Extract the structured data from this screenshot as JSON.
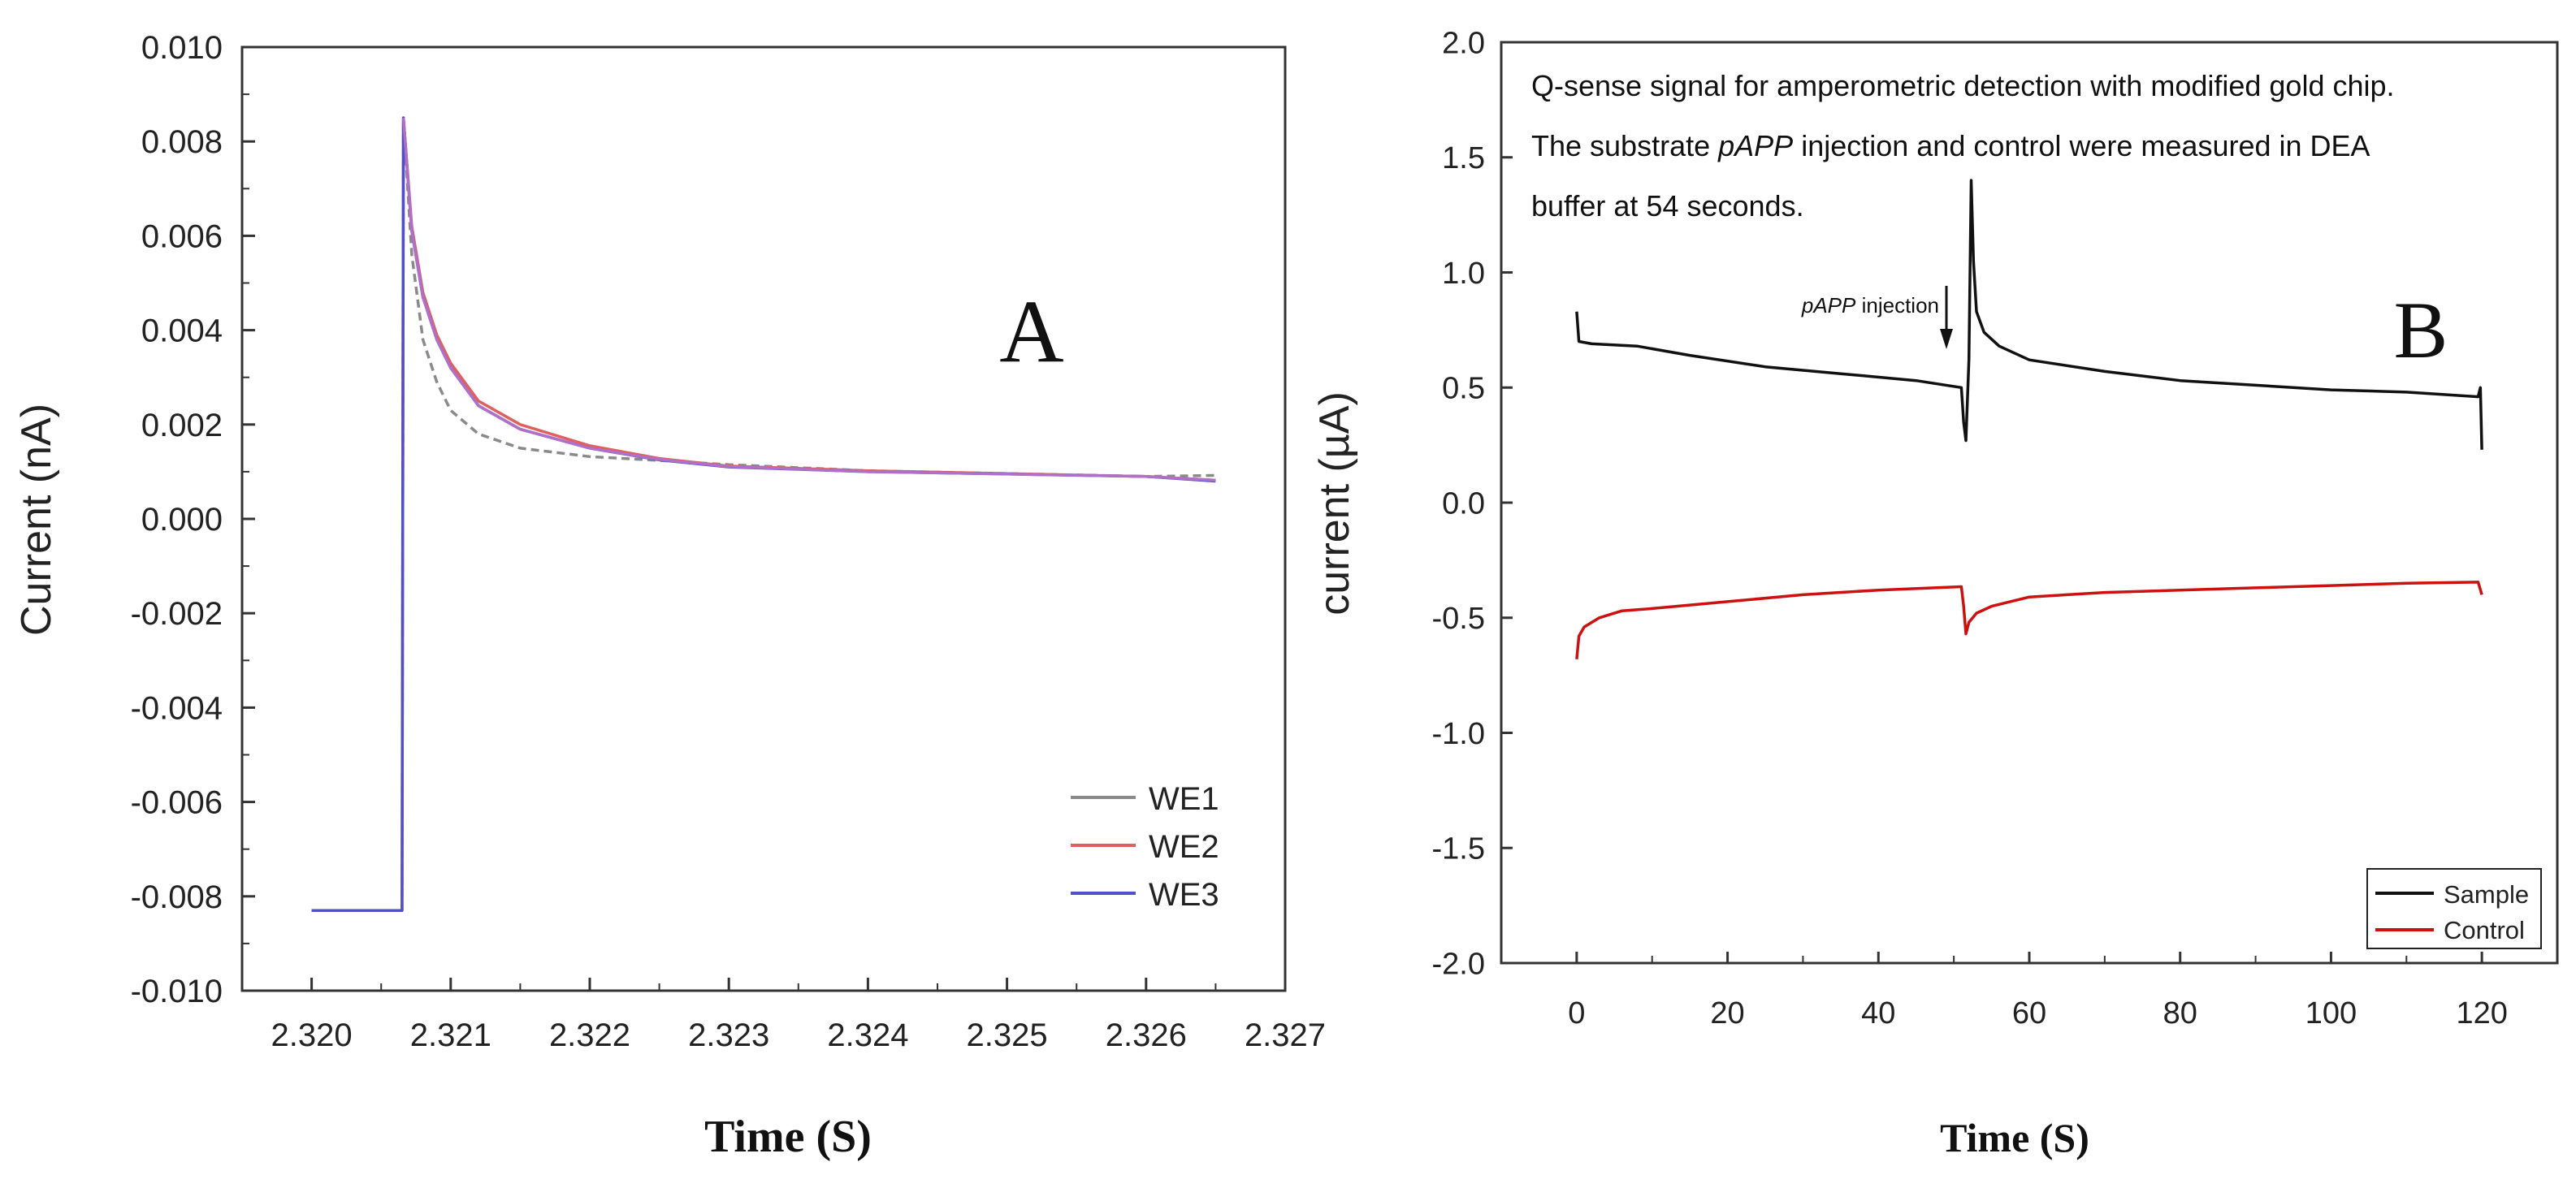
{
  "chart_data": [
    {
      "id": "A",
      "type": "line",
      "panel_label": "A",
      "xlabel": "Time (S)",
      "ylabel": "Current (nA)",
      "xlim": [
        2.3195,
        2.327
      ],
      "ylim": [
        -0.01,
        0.01
      ],
      "xticks": [
        2.32,
        2.321,
        2.322,
        2.323,
        2.324,
        2.325,
        2.326,
        2.327
      ],
      "xtick_labels": [
        "2.320",
        "2.321",
        "2.322",
        "2.323",
        "2.324",
        "2.325",
        "2.326",
        "2.327"
      ],
      "yticks": [
        -0.01,
        -0.008,
        -0.006,
        -0.004,
        -0.002,
        0.0,
        0.002,
        0.004,
        0.006,
        0.008,
        0.01
      ],
      "ytick_labels": [
        "-0.010",
        "-0.008",
        "-0.006",
        "-0.004",
        "-0.002",
        "0.000",
        "0.002",
        "0.004",
        "0.006",
        "0.008",
        "0.010"
      ],
      "legend": {
        "placement": "bottom-right",
        "entries": [
          "WE1",
          "WE2",
          "WE3"
        ]
      },
      "series": [
        {
          "name": "WE1",
          "color": "#8a8a8a",
          "dashed": true,
          "points": [
            [
              2.32,
              -0.0083
            ],
            [
              2.32065,
              -0.0083
            ],
            [
              2.32066,
              0.0085
            ],
            [
              2.32072,
              0.0056
            ],
            [
              2.3208,
              0.0038
            ],
            [
              2.3209,
              0.0029
            ],
            [
              2.321,
              0.0023
            ],
            [
              2.3212,
              0.0018
            ],
            [
              2.3215,
              0.0015
            ],
            [
              2.322,
              0.00132
            ],
            [
              2.3225,
              0.00124
            ],
            [
              2.323,
              0.00115
            ],
            [
              2.324,
              0.00102
            ],
            [
              2.325,
              0.00096
            ],
            [
              2.326,
              0.0009
            ],
            [
              2.3265,
              0.00092
            ]
          ]
        },
        {
          "name": "WE2",
          "color": "#e06060",
          "dashed": false,
          "points": [
            [
              2.32,
              -0.0083
            ],
            [
              2.32065,
              -0.0083
            ],
            [
              2.32066,
              0.0085
            ],
            [
              2.32072,
              0.0062
            ],
            [
              2.3208,
              0.0048
            ],
            [
              2.3209,
              0.0039
            ],
            [
              2.321,
              0.0033
            ],
            [
              2.3212,
              0.0025
            ],
            [
              2.3215,
              0.002
            ],
            [
              2.322,
              0.00155
            ],
            [
              2.3225,
              0.00128
            ],
            [
              2.323,
              0.00112
            ],
            [
              2.324,
              0.00102
            ],
            [
              2.325,
              0.00096
            ],
            [
              2.326,
              0.0009
            ],
            [
              2.3265,
              0.00082
            ]
          ]
        },
        {
          "name": "WE3",
          "color": "#5050c8",
          "dashed": false,
          "points": [
            [
              2.32,
              -0.0083
            ],
            [
              2.32065,
              -0.0083
            ],
            [
              2.32066,
              0.0085
            ],
            [
              2.32072,
              0.0061
            ],
            [
              2.3208,
              0.0047
            ],
            [
              2.3209,
              0.0038
            ],
            [
              2.321,
              0.0032
            ],
            [
              2.3212,
              0.0024
            ],
            [
              2.3215,
              0.0019
            ],
            [
              2.322,
              0.0015
            ],
            [
              2.3225,
              0.00125
            ],
            [
              2.323,
              0.0011
            ],
            [
              2.324,
              0.001
            ],
            [
              2.325,
              0.00095
            ],
            [
              2.326,
              0.0009
            ],
            [
              2.3265,
              0.0008
            ]
          ]
        },
        {
          "name": "overlay",
          "color": "#b070c8",
          "dashed": false,
          "legend": false,
          "points": [
            [
              2.32066,
              0.0085
            ],
            [
              2.32072,
              0.0061
            ],
            [
              2.3208,
              0.0047
            ],
            [
              2.3209,
              0.0038
            ],
            [
              2.321,
              0.0032
            ],
            [
              2.3212,
              0.0024
            ],
            [
              2.3215,
              0.0019
            ],
            [
              2.322,
              0.0015
            ],
            [
              2.3225,
              0.00126
            ],
            [
              2.323,
              0.00111
            ],
            [
              2.324,
              0.001
            ],
            [
              2.325,
              0.00095
            ],
            [
              2.326,
              0.0009
            ],
            [
              2.3265,
              0.00082
            ]
          ]
        }
      ]
    },
    {
      "id": "B",
      "type": "line",
      "panel_label": "B",
      "xlabel": "Time (S)",
      "ylabel": "current (µA)",
      "xlim": [
        -10,
        130
      ],
      "ylim": [
        -2.0,
        2.0
      ],
      "xticks": [
        0,
        20,
        40,
        60,
        80,
        100,
        120
      ],
      "xtick_labels": [
        "0",
        "20",
        "40",
        "60",
        "80",
        "100",
        "120"
      ],
      "yticks": [
        -2.0,
        -1.5,
        -1.0,
        -0.5,
        0.0,
        0.5,
        1.0,
        1.5,
        2.0
      ],
      "ytick_labels": [
        "-2.0",
        "-1.5",
        "-1.0",
        "-0.5",
        "0.0",
        "0.5",
        "1.0",
        "1.5",
        "2.0"
      ],
      "annotation_lines": [
        "Q-sense signal for amperometric detection with modified gold chip.",
        "The substrate pAPP injection and control were measured in DEA",
        "buffer at 54 seconds."
      ],
      "arrow_label": {
        "italic": "pAPP",
        "rest": " injection",
        "x": 49,
        "y": 0.65
      },
      "legend": {
        "placement": "bottom-right",
        "entries": [
          "Sample",
          "Control"
        ]
      },
      "series": [
        {
          "name": "Sample",
          "color": "#111111",
          "points": [
            [
              0,
              0.83
            ],
            [
              0.3,
              0.7
            ],
            [
              2,
              0.69
            ],
            [
              8,
              0.68
            ],
            [
              15,
              0.64
            ],
            [
              25,
              0.59
            ],
            [
              35,
              0.56
            ],
            [
              45,
              0.53
            ],
            [
              51,
              0.5
            ],
            [
              51.3,
              0.35
            ],
            [
              51.6,
              0.27
            ],
            [
              52,
              0.62
            ],
            [
              52.3,
              1.4
            ],
            [
              52.6,
              1.05
            ],
            [
              53,
              0.83
            ],
            [
              54,
              0.74
            ],
            [
              56,
              0.68
            ],
            [
              60,
              0.62
            ],
            [
              70,
              0.57
            ],
            [
              80,
              0.53
            ],
            [
              90,
              0.51
            ],
            [
              100,
              0.49
            ],
            [
              110,
              0.48
            ],
            [
              119.5,
              0.46
            ],
            [
              119.8,
              0.5
            ],
            [
              120,
              0.23
            ]
          ]
        },
        {
          "name": "Control",
          "color": "#cc1111",
          "points": [
            [
              0,
              -0.68
            ],
            [
              0.3,
              -0.58
            ],
            [
              1,
              -0.54
            ],
            [
              3,
              -0.5
            ],
            [
              6,
              -0.47
            ],
            [
              10,
              -0.46
            ],
            [
              20,
              -0.43
            ],
            [
              30,
              -0.4
            ],
            [
              40,
              -0.38
            ],
            [
              51,
              -0.365
            ],
            [
              51.3,
              -0.45
            ],
            [
              51.6,
              -0.57
            ],
            [
              52,
              -0.52
            ],
            [
              53,
              -0.48
            ],
            [
              55,
              -0.45
            ],
            [
              60,
              -0.41
            ],
            [
              70,
              -0.39
            ],
            [
              80,
              -0.38
            ],
            [
              90,
              -0.37
            ],
            [
              100,
              -0.36
            ],
            [
              110,
              -0.35
            ],
            [
              119.5,
              -0.345
            ],
            [
              120,
              -0.4
            ]
          ]
        }
      ]
    }
  ]
}
